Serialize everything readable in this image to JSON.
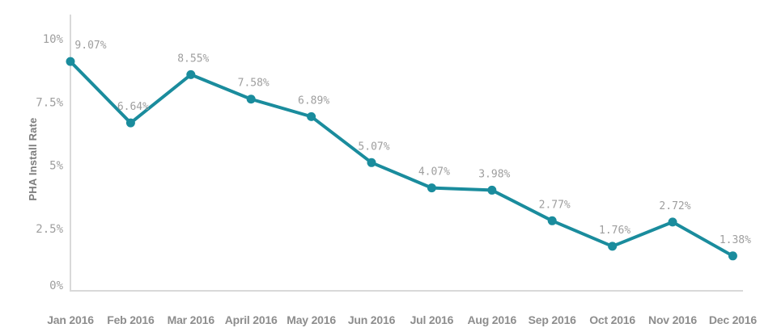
{
  "chart_data": {
    "type": "line",
    "title": "",
    "xlabel": "",
    "ylabel": "PHA Install Rate",
    "categories": [
      "Jan 2016",
      "Feb 2016",
      "Mar 2016",
      "April 2016",
      "May 2016",
      "Jun 2016",
      "Jul 2016",
      "Aug 2016",
      "Sep 2016",
      "Oct 2016",
      "Nov 2016",
      "Dec 2016"
    ],
    "series": [
      {
        "name": "PHA Install Rate",
        "values": [
          9.07,
          6.64,
          8.55,
          7.58,
          6.89,
          5.07,
          4.07,
          3.98,
          2.77,
          1.76,
          2.72,
          1.38
        ]
      }
    ],
    "point_labels": [
      "9.07%",
      "6.64%",
      "8.55%",
      "7.58%",
      "6.89%",
      "5.07%",
      "4.07%",
      "3.98%",
      "2.77%",
      "1.76%",
      "2.72%",
      "1.38%"
    ],
    "y_ticks": [
      {
        "label": "0%",
        "value": 0
      },
      {
        "label": "2.5%",
        "value": 2.5
      },
      {
        "label": "5%",
        "value": 5
      },
      {
        "label": "7.5%",
        "value": 7.5
      },
      {
        "label": "10%",
        "value": 10
      }
    ],
    "ylim": [
      0,
      10
    ],
    "grid": false,
    "legend": "none",
    "colors": {
      "line": "#1a8c9d",
      "point": "#1a8c9d",
      "axis": "#d9d9d9",
      "y_tick_text": "#9e9e9e",
      "x_tick_text": "#8d8d8d",
      "point_label_text": "#9e9e9e",
      "axis_title_text": "#7d7d7d",
      "background": "#ffffff"
    }
  }
}
